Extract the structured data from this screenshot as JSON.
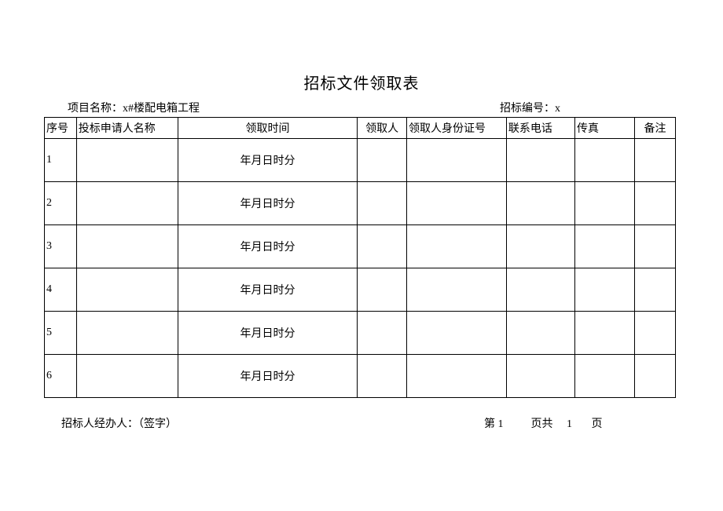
{
  "title": "招标文件领取表",
  "header": {
    "project_label": "项目名称：",
    "project_name": "x#楼配电箱工程",
    "bid_no_label": "招标编号：",
    "bid_no_value": "x"
  },
  "table": {
    "columns": {
      "seq": "序号",
      "applicant": "投标申请人名称",
      "time": "领取时间",
      "receiver": "领取人",
      "id": "领取人身份证号",
      "phone": "联系电话",
      "fax": "传真",
      "remark": "备注"
    },
    "time_template": "年月日时分",
    "rows": [
      {
        "seq": "1"
      },
      {
        "seq": "2"
      },
      {
        "seq": "3"
      },
      {
        "seq": "4"
      },
      {
        "seq": "5"
      },
      {
        "seq": "6"
      }
    ]
  },
  "footer": {
    "agent_text": "招标人经办人：（签字）",
    "pager_prefix": "第",
    "page_current": "1",
    "pager_mid": "页共",
    "page_total": "1",
    "pager_suffix": "页"
  },
  "style": {
    "border_color": "#000000",
    "background_color": "#ffffff",
    "title_fontsize": 20,
    "body_fontsize": 14,
    "header_row_height": 26,
    "data_row_height": 54,
    "col_widths": {
      "seq": 34,
      "applicant": 114,
      "time": 206,
      "receiver": 56,
      "id": 112,
      "phone": 76,
      "fax": 66,
      "remark": 46
    }
  }
}
